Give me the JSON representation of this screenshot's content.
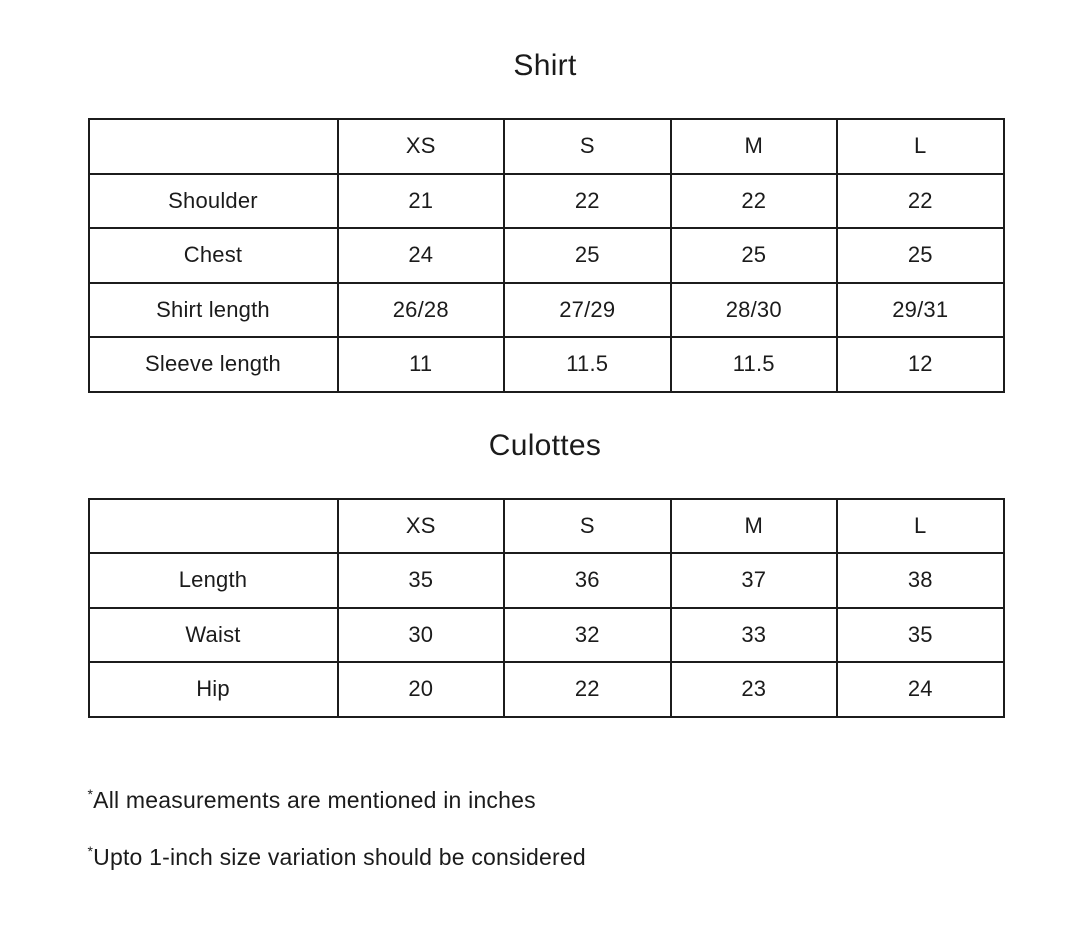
{
  "page": {
    "background_color": "#ffffff",
    "text_color": "#1b1b1b",
    "border_color": "#1c1c1c"
  },
  "chart_data": [
    {
      "type": "table",
      "title": "Shirt",
      "columns": [
        "",
        "XS",
        "S",
        "M",
        "L"
      ],
      "rows": [
        {
          "label": "Shoulder",
          "values": [
            "21",
            "22",
            "22",
            "22"
          ]
        },
        {
          "label": "Chest",
          "values": [
            "24",
            "25",
            "25",
            "25"
          ]
        },
        {
          "label": "Shirt length",
          "values": [
            "26/28",
            "27/29",
            "28/30",
            "29/31"
          ]
        },
        {
          "label": "Sleeve length",
          "values": [
            "11",
            "11.5",
            "11.5",
            "12"
          ]
        }
      ]
    },
    {
      "type": "table",
      "title": "Culottes",
      "columns": [
        "",
        "XS",
        "S",
        "M",
        "L"
      ],
      "rows": [
        {
          "label": "Length",
          "values": [
            "35",
            "36",
            "37",
            "38"
          ]
        },
        {
          "label": "Waist",
          "values": [
            "30",
            "32",
            "33",
            "35"
          ]
        },
        {
          "label": "Hip",
          "values": [
            "20",
            "22",
            "23",
            "24"
          ]
        }
      ]
    }
  ],
  "footnotes": [
    {
      "marker": "*",
      "text": "All measurements are mentioned in inches"
    },
    {
      "marker": "*",
      "text": "Upto 1-inch size variation should be considered"
    }
  ]
}
